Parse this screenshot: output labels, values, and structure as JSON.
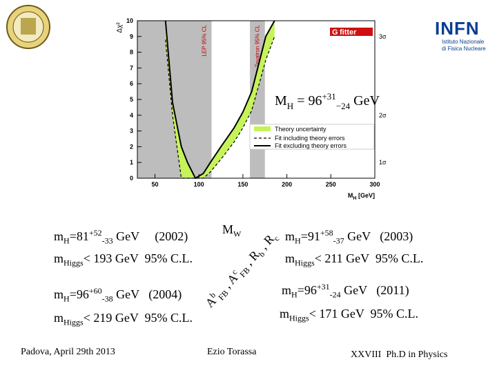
{
  "logos": {
    "infn": "INFN",
    "infn_sub": [
      "Istituto Nazionale",
      "di Fisica Nucleare"
    ],
    "gfitter_g": "G",
    "gfitter": "fitter"
  },
  "chart_data": {
    "type": "line",
    "y_label": "Δχ²",
    "x_label": "M",
    "x_label_sub": "H",
    "x_label_unit": " [GeV]",
    "x": [
      62,
      70,
      80,
      87,
      96,
      105,
      113,
      125,
      140,
      150,
      160,
      176,
      186
    ],
    "series": [
      {
        "name": "Fit including theory errors",
        "color": "#000000",
        "dash": true,
        "values": [
          8.8,
          4,
          0,
          0,
          0,
          0,
          0.4,
          1.2,
          2.3,
          3.2,
          4.3,
          7.5,
          9
        ]
      },
      {
        "name": "Fit excluding theory errors",
        "color": "#000000",
        "dash": false,
        "values": [
          10,
          4.8,
          2.0,
          1,
          0,
          0.3,
          1,
          2,
          3.2,
          4.2,
          5.5,
          9,
          10
        ]
      }
    ],
    "band": {
      "name": "Theory uncertainty",
      "color": "#c6f25a"
    },
    "xlim": [
      30,
      300
    ],
    "ylim": [
      0,
      10
    ],
    "xticks": [
      50,
      100,
      150,
      200,
      250,
      300
    ],
    "yticks": [
      0,
      1,
      2,
      3,
      4,
      5,
      6,
      7,
      8,
      9,
      10
    ],
    "sigma_labels": [
      {
        "value": 1,
        "label": "1σ"
      },
      {
        "value": 4,
        "label": "2σ"
      },
      {
        "value": 9,
        "label": "3σ"
      }
    ],
    "excluded": [
      {
        "label": "LEP 95% CL",
        "from": 30,
        "to": 114.4
      },
      {
        "label": "Tevatron 95% CL",
        "from": 158,
        "to": 175
      }
    ],
    "annotation": [
      {
        "text": "M"
      },
      {
        "text": "H",
        "pos": "sub"
      },
      {
        "text": " = 96"
      },
      {
        "text": "+31",
        "pos": "sup"
      },
      {
        "text": "−24",
        "pos": "sub"
      },
      {
        "text": " GeV"
      }
    ]
  },
  "results": {
    "left": [
      [
        {
          "text": "m"
        },
        {
          "text": "H",
          "pos": "sub"
        },
        {
          "text": "=81"
        },
        {
          "text": "+52",
          "pos": "sup"
        },
        {
          "text": "-33",
          "pos": "sub"
        },
        {
          "text": " GeV     (2002)"
        }
      ],
      [
        {
          "text": "m"
        },
        {
          "text": "Higgs",
          "pos": "sub"
        },
        {
          "text": "< 193 GeV  95% C.L."
        }
      ],
      [
        {
          "text": "m"
        },
        {
          "text": "H",
          "pos": "sub"
        },
        {
          "text": "=96"
        },
        {
          "text": "+60",
          "pos": "sup"
        },
        {
          "text": "-38",
          "pos": "sub"
        },
        {
          "text": " GeV   (2004)"
        }
      ],
      [
        {
          "text": "m"
        },
        {
          "text": "Higgs",
          "pos": "sub"
        },
        {
          "text": "< 219 GeV  95% C.L."
        }
      ]
    ],
    "right": [
      [
        {
          "text": "m"
        },
        {
          "text": "H",
          "pos": "sub"
        },
        {
          "text": "=91"
        },
        {
          "text": "+58",
          "pos": "sup"
        },
        {
          "text": "-37",
          "pos": "sub"
        },
        {
          "text": " GeV   (2003)"
        }
      ],
      [
        {
          "text": "m"
        },
        {
          "text": "Higgs",
          "pos": "sub"
        },
        {
          "text": "< 211 GeV  95% C.L."
        }
      ],
      [
        {
          "text": "m"
        },
        {
          "text": "H",
          "pos": "sub"
        },
        {
          "text": "=96"
        },
        {
          "text": "+31",
          "pos": "sup"
        },
        {
          "text": "-24",
          "pos": "sub"
        },
        {
          "text": " GeV   (2011)"
        }
      ],
      [
        {
          "text": "m"
        },
        {
          "text": "Higgs",
          "pos": "sub"
        },
        {
          "text": "< 171 GeV  95% C.L."
        }
      ]
    ]
  },
  "mw": [
    {
      "text": "M"
    },
    {
      "text": "W",
      "pos": "sub"
    }
  ],
  "observables": [
    {
      "text": "A"
    },
    {
      "text": "b",
      "pos": "sup"
    },
    {
      "text": "FB",
      "pos": "sub"
    },
    {
      "text": " , A"
    },
    {
      "text": "c",
      "pos": "sup"
    },
    {
      "text": "FB",
      "pos": "sub"
    },
    {
      "text": " , R"
    },
    {
      "text": "b",
      "pos": "sub"
    },
    {
      "text": " , R"
    },
    {
      "text": "c",
      "pos": "sub"
    }
  ],
  "footer": {
    "place_date": "Padova, April 29th 2013",
    "author": "Ezio Torassa",
    "course": "XXVIII  Ph.D in Physics"
  }
}
